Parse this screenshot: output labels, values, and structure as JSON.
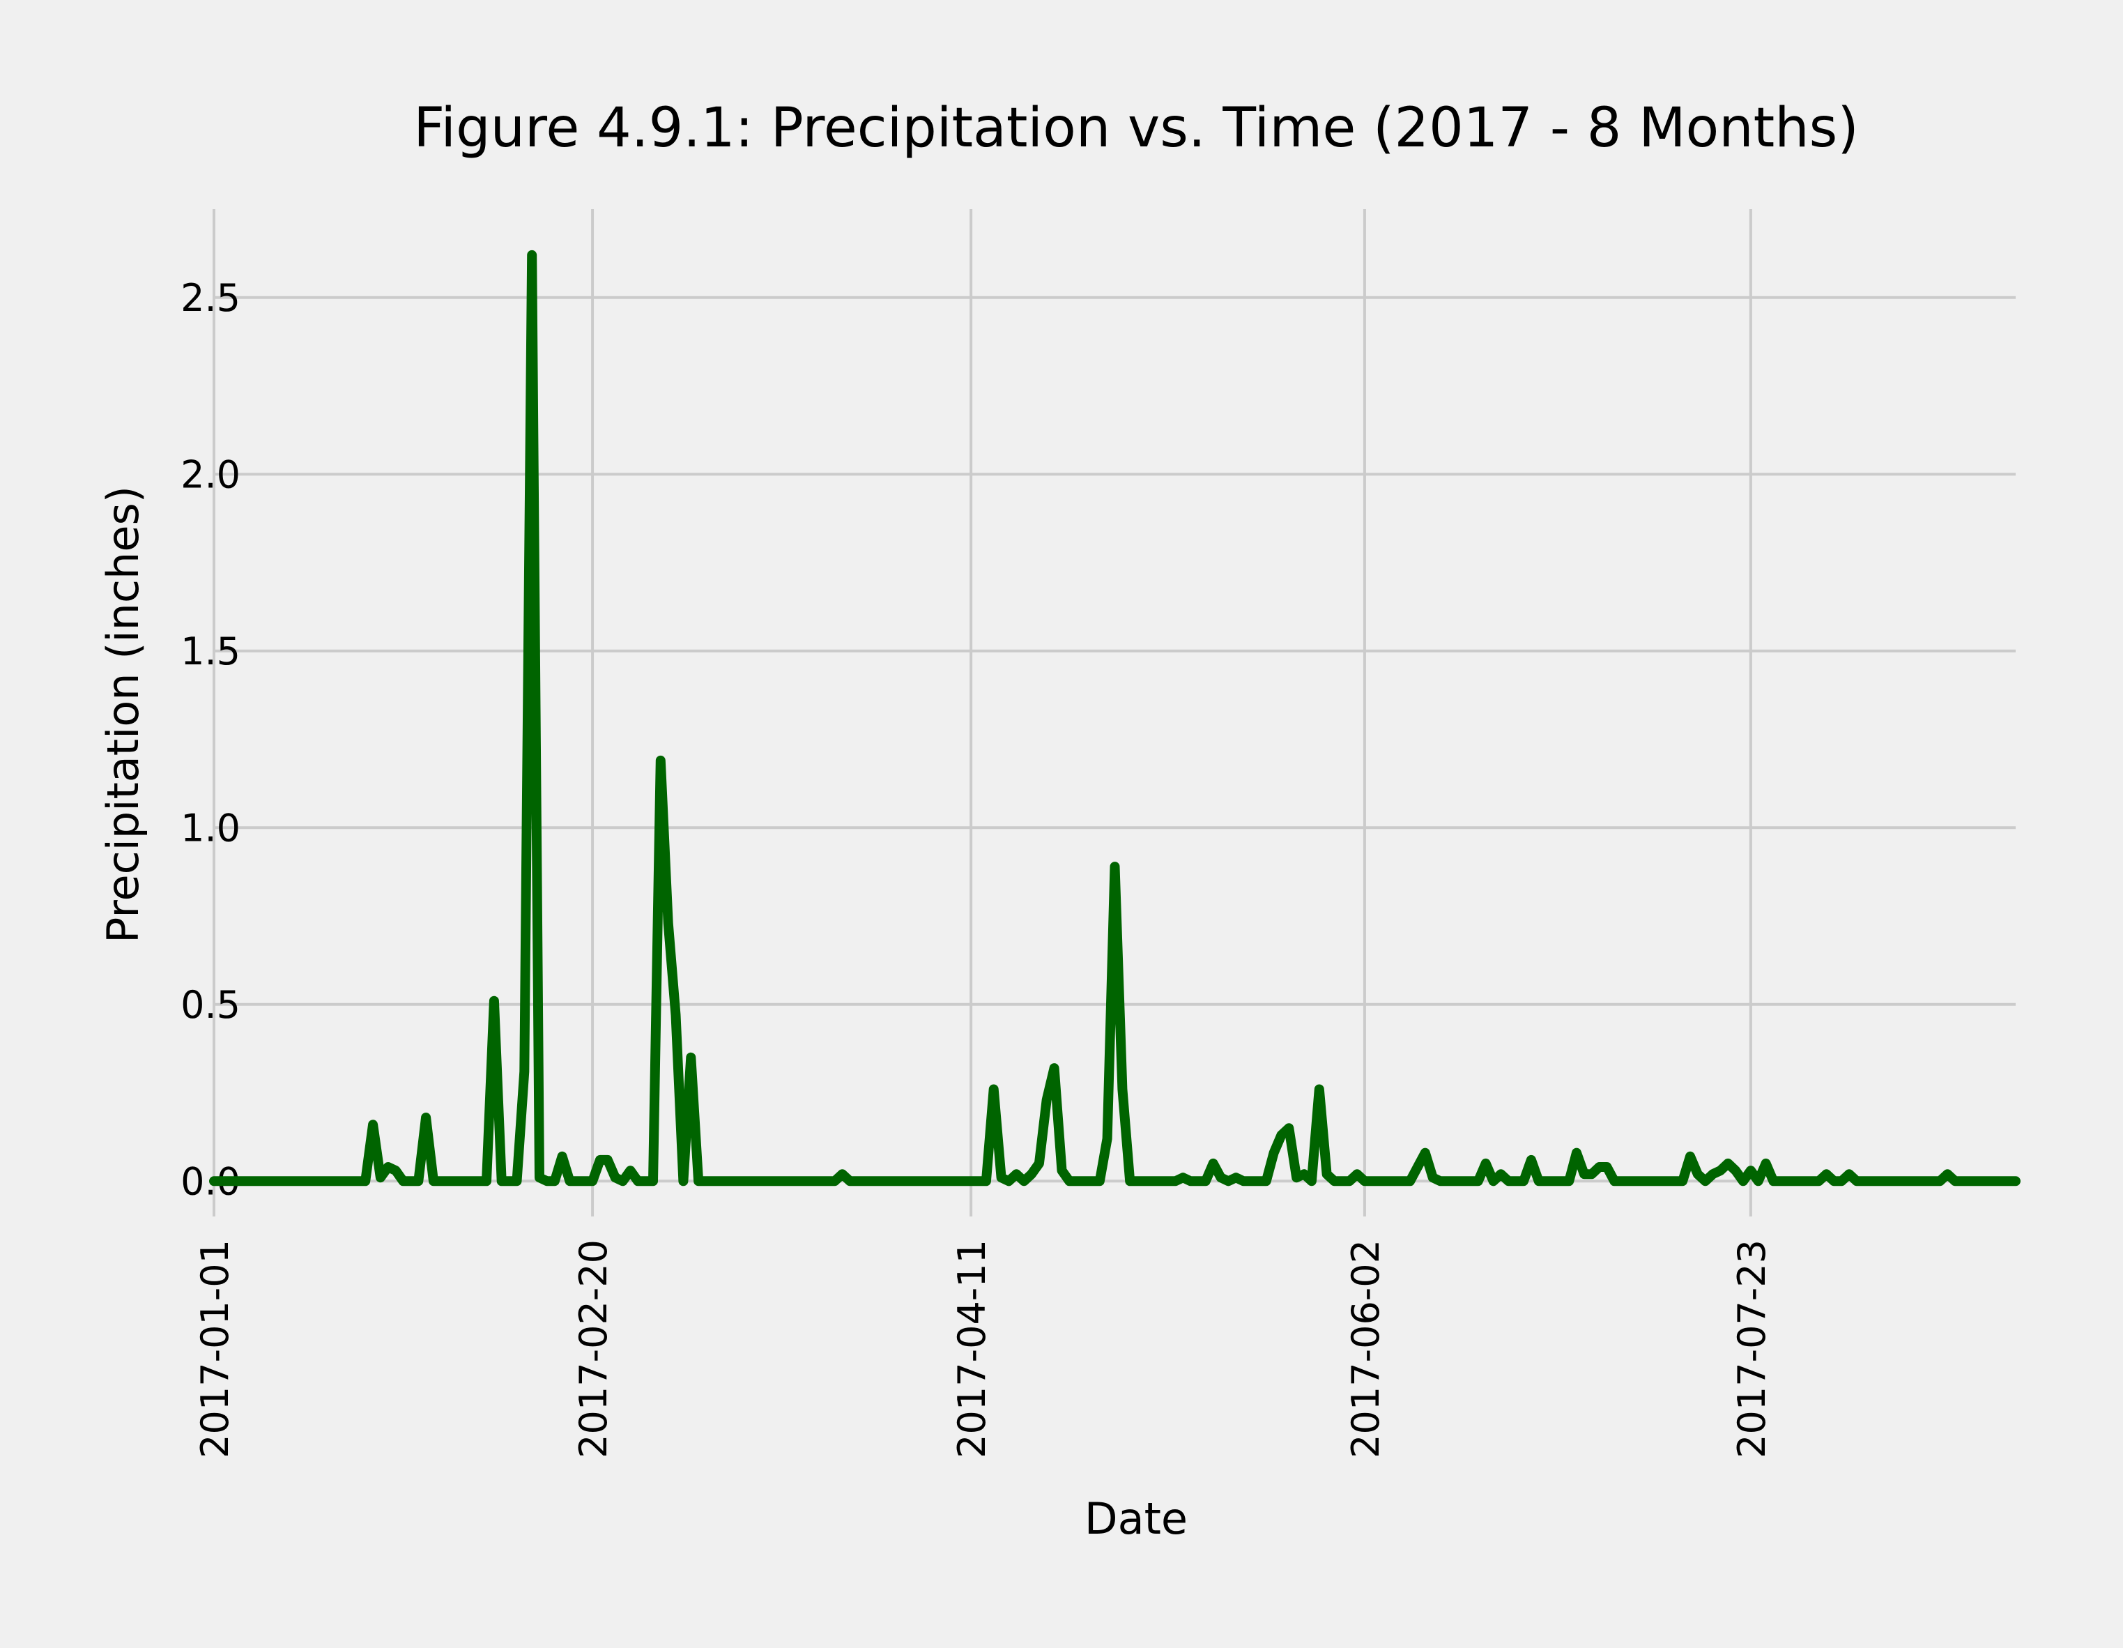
{
  "chart_data": {
    "type": "line",
    "title": "Figure 4.9.1: Precipitation vs. Time (2017 - 8 Months)",
    "xlabel": "Date",
    "ylabel": "Precipitation (inches)",
    "xlim": [
      "2017-01-01",
      "2017-08-27"
    ],
    "ylim": [
      -0.1,
      2.75
    ],
    "x_ticks": [
      "2017-01-01",
      "2017-02-20",
      "2017-04-11",
      "2017-06-02",
      "2017-07-23"
    ],
    "y_ticks": [
      0.0,
      0.5,
      1.0,
      1.5,
      2.0,
      2.5
    ],
    "y_tick_labels": [
      "0.0",
      "0.5",
      "1.0",
      "1.5",
      "2.0",
      "2.5"
    ],
    "grid": true,
    "line_color": "#006400",
    "series": [
      {
        "points": [
          [
            "2017-01-01",
            0
          ],
          [
            "2017-01-21",
            0
          ],
          [
            "2017-01-22",
            0.16
          ],
          [
            "2017-01-23",
            0.01
          ],
          [
            "2017-01-24",
            0.04
          ],
          [
            "2017-01-25",
            0.03
          ],
          [
            "2017-01-26",
            0
          ],
          [
            "2017-01-28",
            0
          ],
          [
            "2017-01-29",
            0.18
          ],
          [
            "2017-01-30",
            0
          ],
          [
            "2017-02-06",
            0
          ],
          [
            "2017-02-07",
            0.51
          ],
          [
            "2017-02-08",
            0
          ],
          [
            "2017-02-10",
            0
          ],
          [
            "2017-02-11",
            0.31
          ],
          [
            "2017-02-12",
            2.62
          ],
          [
            "2017-02-13",
            0.01
          ],
          [
            "2017-02-14",
            0
          ],
          [
            "2017-02-15",
            0
          ],
          [
            "2017-02-16",
            0.07
          ],
          [
            "2017-02-17",
            0
          ],
          [
            "2017-02-20",
            0
          ],
          [
            "2017-02-21",
            0.06
          ],
          [
            "2017-02-22",
            0.06
          ],
          [
            "2017-02-23",
            0.01
          ],
          [
            "2017-02-24",
            0
          ],
          [
            "2017-02-25",
            0.03
          ],
          [
            "2017-02-26",
            0
          ],
          [
            "2017-02-28",
            0
          ],
          [
            "2017-03-01",
            1.19
          ],
          [
            "2017-03-02",
            0.73
          ],
          [
            "2017-03-03",
            0.47
          ],
          [
            "2017-03-04",
            0
          ],
          [
            "2017-03-05",
            0.35
          ],
          [
            "2017-03-06",
            0
          ],
          [
            "2017-03-24",
            0
          ],
          [
            "2017-03-25",
            0.02
          ],
          [
            "2017-03-26",
            0
          ],
          [
            "2017-04-13",
            0
          ],
          [
            "2017-04-14",
            0.26
          ],
          [
            "2017-04-15",
            0.01
          ],
          [
            "2017-04-16",
            0
          ],
          [
            "2017-04-17",
            0.02
          ],
          [
            "2017-04-18",
            0
          ],
          [
            "2017-04-19",
            0.02
          ],
          [
            "2017-04-20",
            0.05
          ],
          [
            "2017-04-21",
            0.23
          ],
          [
            "2017-04-22",
            0.32
          ],
          [
            "2017-04-23",
            0.03
          ],
          [
            "2017-04-24",
            0
          ],
          [
            "2017-04-28",
            0
          ],
          [
            "2017-04-29",
            0.12
          ],
          [
            "2017-04-30",
            0.89
          ],
          [
            "2017-05-01",
            0.26
          ],
          [
            "2017-05-02",
            0
          ],
          [
            "2017-05-08",
            0
          ],
          [
            "2017-05-09",
            0.01
          ],
          [
            "2017-05-10",
            0
          ],
          [
            "2017-05-12",
            0
          ],
          [
            "2017-05-13",
            0.05
          ],
          [
            "2017-05-14",
            0.01
          ],
          [
            "2017-05-15",
            0
          ],
          [
            "2017-05-16",
            0.01
          ],
          [
            "2017-05-17",
            0
          ],
          [
            "2017-05-20",
            0
          ],
          [
            "2017-05-21",
            0.08
          ],
          [
            "2017-05-22",
            0.13
          ],
          [
            "2017-05-23",
            0.15
          ],
          [
            "2017-05-24",
            0.01
          ],
          [
            "2017-05-25",
            0.02
          ],
          [
            "2017-05-26",
            0
          ],
          [
            "2017-05-27",
            0.26
          ],
          [
            "2017-05-28",
            0.02
          ],
          [
            "2017-05-29",
            0
          ],
          [
            "2017-05-31",
            0
          ],
          [
            "2017-06-01",
            0.02
          ],
          [
            "2017-06-02",
            0
          ],
          [
            "2017-06-08",
            0
          ],
          [
            "2017-06-10",
            0.08
          ],
          [
            "2017-06-11",
            0.01
          ],
          [
            "2017-06-12",
            0
          ],
          [
            "2017-06-17",
            0
          ],
          [
            "2017-06-18",
            0.05
          ],
          [
            "2017-06-19",
            0
          ],
          [
            "2017-06-20",
            0.02
          ],
          [
            "2017-06-21",
            0
          ],
          [
            "2017-06-23",
            0
          ],
          [
            "2017-06-24",
            0.06
          ],
          [
            "2017-06-25",
            0
          ],
          [
            "2017-06-29",
            0
          ],
          [
            "2017-06-30",
            0.08
          ],
          [
            "2017-07-01",
            0.02
          ],
          [
            "2017-07-02",
            0.02
          ],
          [
            "2017-07-03",
            0.04
          ],
          [
            "2017-07-04",
            0.04
          ],
          [
            "2017-07-05",
            0
          ],
          [
            "2017-07-14",
            0
          ],
          [
            "2017-07-15",
            0.07
          ],
          [
            "2017-07-16",
            0.02
          ],
          [
            "2017-07-17",
            0
          ],
          [
            "2017-07-18",
            0.02
          ],
          [
            "2017-07-19",
            0.03
          ],
          [
            "2017-07-20",
            0.05
          ],
          [
            "2017-07-21",
            0.03
          ],
          [
            "2017-07-22",
            0
          ],
          [
            "2017-07-23",
            0.03
          ],
          [
            "2017-07-24",
            0
          ],
          [
            "2017-07-25",
            0.05
          ],
          [
            "2017-07-26",
            0
          ],
          [
            "2017-08-01",
            0
          ],
          [
            "2017-08-02",
            0.02
          ],
          [
            "2017-08-03",
            0
          ],
          [
            "2017-08-04",
            0
          ],
          [
            "2017-08-05",
            0.02
          ],
          [
            "2017-08-06",
            0
          ],
          [
            "2017-08-17",
            0
          ],
          [
            "2017-08-18",
            0.02
          ],
          [
            "2017-08-19",
            0
          ],
          [
            "2017-08-27",
            0
          ]
        ]
      }
    ]
  }
}
